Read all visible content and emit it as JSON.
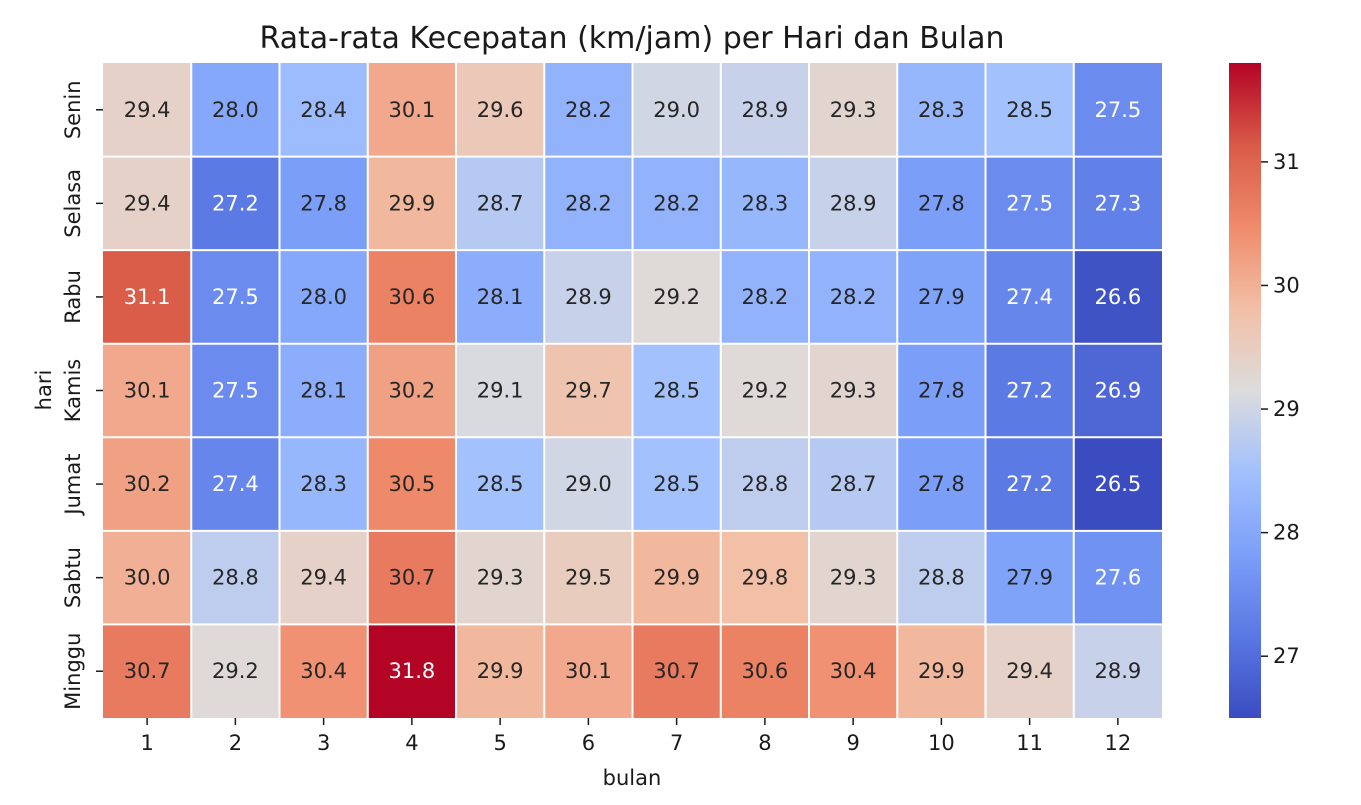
{
  "chart_data": {
    "type": "heatmap",
    "title": "Rata-rata Kecepatan (km/jam) per Hari dan Bulan",
    "xlabel": "bulan",
    "ylabel": "hari",
    "x_categories": [
      "1",
      "2",
      "3",
      "4",
      "5",
      "6",
      "7",
      "8",
      "9",
      "10",
      "11",
      "12"
    ],
    "y_categories": [
      "Senin",
      "Selasa",
      "Rabu",
      "Kamis",
      "Jumat",
      "Sabtu",
      "Minggu"
    ],
    "values": [
      [
        29.4,
        28.0,
        28.4,
        30.1,
        29.6,
        28.2,
        29.0,
        28.9,
        29.3,
        28.3,
        28.5,
        27.5
      ],
      [
        29.4,
        27.2,
        27.8,
        29.9,
        28.7,
        28.2,
        28.2,
        28.3,
        28.9,
        27.8,
        27.5,
        27.3
      ],
      [
        31.1,
        27.5,
        28.0,
        30.6,
        28.1,
        28.9,
        29.2,
        28.2,
        28.2,
        27.9,
        27.4,
        26.6
      ],
      [
        30.1,
        27.5,
        28.1,
        30.2,
        29.1,
        29.7,
        28.5,
        29.2,
        29.3,
        27.8,
        27.2,
        26.9
      ],
      [
        30.2,
        27.4,
        28.3,
        30.5,
        28.5,
        29.0,
        28.5,
        28.8,
        28.7,
        27.8,
        27.2,
        26.5
      ],
      [
        30.0,
        28.8,
        29.4,
        30.7,
        29.3,
        29.5,
        29.9,
        29.8,
        29.3,
        28.8,
        27.9,
        27.6
      ],
      [
        30.7,
        29.2,
        30.4,
        31.8,
        29.9,
        30.1,
        30.7,
        30.6,
        30.4,
        29.9,
        29.4,
        28.9
      ]
    ],
    "colormap": "coolwarm",
    "color_range": [
      26.5,
      31.8
    ],
    "colorbar_ticks": [
      "27",
      "28",
      "29",
      "30",
      "31"
    ],
    "colorbar_tick_values": [
      27,
      28,
      29,
      30,
      31
    ],
    "annotation_format": "1 decimal"
  }
}
